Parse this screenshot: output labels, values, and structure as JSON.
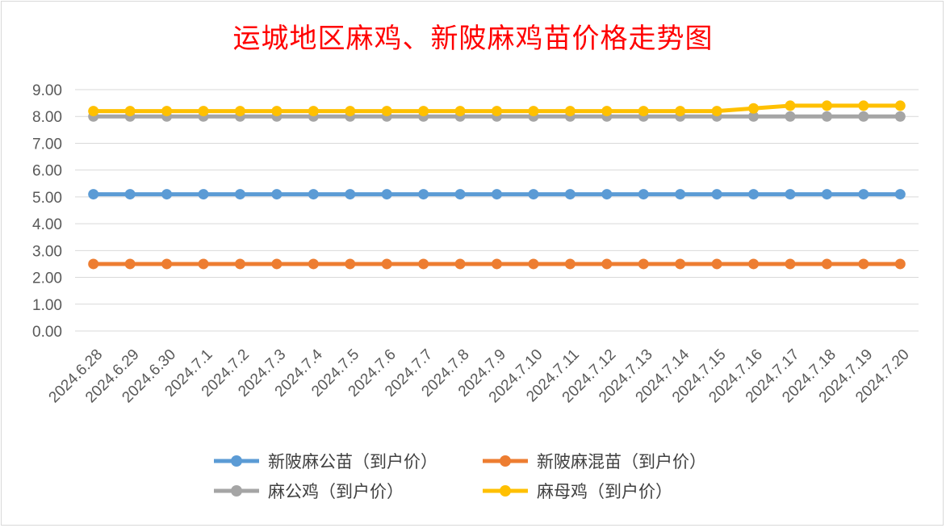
{
  "chart_data": {
    "type": "line",
    "title": "运城地区麻鸡、新陂麻鸡苗价格走势图",
    "xlabel": "",
    "ylabel": "",
    "ylim": [
      0,
      9
    ],
    "yticks": [
      "0.00",
      "1.00",
      "2.00",
      "3.00",
      "4.00",
      "5.00",
      "6.00",
      "7.00",
      "8.00",
      "9.00"
    ],
    "grid": true,
    "legend_position": "bottom",
    "categories": [
      "2024.6.28",
      "2024.6.29",
      "2024.6.30",
      "2024.7.1",
      "2024.7.2",
      "2024.7.3",
      "2024.7.4",
      "2024.7.5",
      "2024.7.6",
      "2024.7.7",
      "2024.7.8",
      "2024.7.9",
      "2024.7.10",
      "2024.7.11",
      "2024.7.12",
      "2024.7.13",
      "2024.7.14",
      "2024.7.15",
      "2024.7.16",
      "2024.7.17",
      "2024.7.18",
      "2024.7.19",
      "2024.7.20"
    ],
    "series": [
      {
        "name": "新陂麻公苗（到户价）",
        "color": "#5b9bd5",
        "values": [
          5.1,
          5.1,
          5.1,
          5.1,
          5.1,
          5.1,
          5.1,
          5.1,
          5.1,
          5.1,
          5.1,
          5.1,
          5.1,
          5.1,
          5.1,
          5.1,
          5.1,
          5.1,
          5.1,
          5.1,
          5.1,
          5.1,
          5.1
        ]
      },
      {
        "name": "新陂麻混苗（到户价）",
        "color": "#ed7d31",
        "values": [
          2.5,
          2.5,
          2.5,
          2.5,
          2.5,
          2.5,
          2.5,
          2.5,
          2.5,
          2.5,
          2.5,
          2.5,
          2.5,
          2.5,
          2.5,
          2.5,
          2.5,
          2.5,
          2.5,
          2.5,
          2.5,
          2.5,
          2.5
        ]
      },
      {
        "name": "麻公鸡（到户价）",
        "color": "#a5a5a5",
        "values": [
          8.0,
          8.0,
          8.0,
          8.0,
          8.0,
          8.0,
          8.0,
          8.0,
          8.0,
          8.0,
          8.0,
          8.0,
          8.0,
          8.0,
          8.0,
          8.0,
          8.0,
          8.0,
          8.0,
          8.0,
          8.0,
          8.0,
          8.0
        ]
      },
      {
        "name": "麻母鸡（到户价）",
        "color": "#ffc000",
        "values": [
          8.2,
          8.2,
          8.2,
          8.2,
          8.2,
          8.2,
          8.2,
          8.2,
          8.2,
          8.2,
          8.2,
          8.2,
          8.2,
          8.2,
          8.2,
          8.2,
          8.2,
          8.2,
          8.3,
          8.4,
          8.4,
          8.4,
          8.4
        ]
      }
    ]
  }
}
